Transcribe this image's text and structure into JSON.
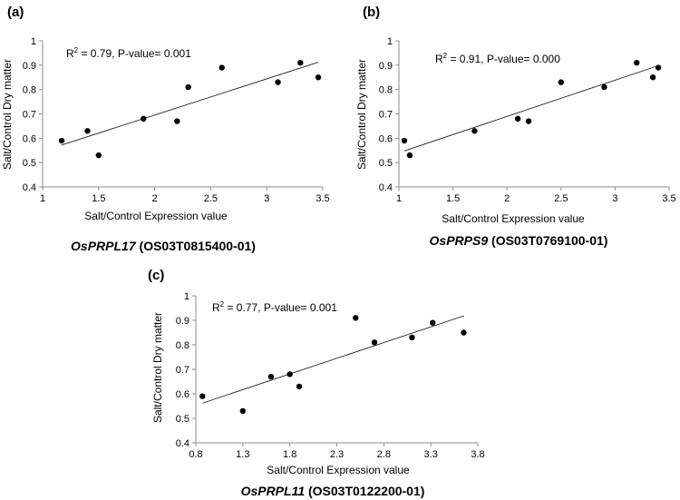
{
  "chart_data": [
    {
      "type": "scatter",
      "panel_label": "(a)",
      "annotation": {
        "r_prefix": "R",
        "r_sup": "2",
        "text": " = 0.79, P-value= 0.001"
      },
      "xlabel": "Salt/Control Expression value",
      "ylabel": "Salt/Control Dry matter",
      "xlim": [
        1,
        3.5
      ],
      "ylim": [
        0.4,
        1
      ],
      "xticks": [
        "1",
        "1.5",
        "2",
        "2.5",
        "3",
        "3.5"
      ],
      "yticks": [
        "0.4",
        "0.5",
        "0.6",
        "0.7",
        "0.8",
        "0.9",
        "1"
      ],
      "points": [
        {
          "x": 1.17,
          "y": 0.59
        },
        {
          "x": 1.4,
          "y": 0.63
        },
        {
          "x": 1.5,
          "y": 0.53
        },
        {
          "x": 1.9,
          "y": 0.68
        },
        {
          "x": 2.2,
          "y": 0.67
        },
        {
          "x": 2.3,
          "y": 0.81
        },
        {
          "x": 2.6,
          "y": 0.89
        },
        {
          "x": 3.1,
          "y": 0.83
        },
        {
          "x": 3.3,
          "y": 0.91
        },
        {
          "x": 3.46,
          "y": 0.85
        }
      ],
      "trendline": {
        "x1": 1.17,
        "y1": 0.572,
        "x2": 3.46,
        "y2": 0.912
      },
      "caption": {
        "gene": "OsPRPL17",
        "id": " (OS03T0815400-01)"
      }
    },
    {
      "type": "scatter",
      "panel_label": "(b)",
      "annotation": {
        "r_prefix": "R",
        "r_sup": "2",
        "text": " = 0.91, P-value= 0.000"
      },
      "xlabel": "Salt/Control Expression value",
      "ylabel": "Salt/Control Dry matter",
      "xlim": [
        1,
        3.5
      ],
      "ylim": [
        0.4,
        1
      ],
      "xticks": [
        "1",
        "1.5",
        "2",
        "2.5",
        "3",
        "3.5"
      ],
      "yticks": [
        "0.4",
        "0.5",
        "0.6",
        "0.7",
        "0.8",
        "0.9",
        "1"
      ],
      "points": [
        {
          "x": 1.05,
          "y": 0.59
        },
        {
          "x": 1.1,
          "y": 0.53
        },
        {
          "x": 1.7,
          "y": 0.63
        },
        {
          "x": 2.1,
          "y": 0.68
        },
        {
          "x": 2.2,
          "y": 0.67
        },
        {
          "x": 2.5,
          "y": 0.83
        },
        {
          "x": 2.9,
          "y": 0.81
        },
        {
          "x": 3.2,
          "y": 0.91
        },
        {
          "x": 3.35,
          "y": 0.85
        },
        {
          "x": 3.4,
          "y": 0.89
        }
      ],
      "trendline": {
        "x1": 1.05,
        "y1": 0.548,
        "x2": 3.4,
        "y2": 0.898
      },
      "caption": {
        "gene": "OsPRPS9",
        "id": " (OS03T0769100-01)"
      }
    },
    {
      "type": "scatter",
      "panel_label": "(c)",
      "annotation": {
        "r_prefix": "R",
        "r_sup": "2",
        "text": " = 0.77, P-value= 0.001"
      },
      "xlabel": "Salt/Control Expression value",
      "ylabel": "Salt/Control Dry matter",
      "xlim": [
        0.8,
        3.8
      ],
      "ylim": [
        0.4,
        1
      ],
      "xticks": [
        "0.8",
        "1.3",
        "1.8",
        "2.3",
        "2.8",
        "3.3",
        "3.8"
      ],
      "yticks": [
        "0.4",
        "0.5",
        "0.6",
        "0.7",
        "0.8",
        "0.9",
        "1"
      ],
      "points": [
        {
          "x": 0.87,
          "y": 0.59
        },
        {
          "x": 1.3,
          "y": 0.53
        },
        {
          "x": 1.6,
          "y": 0.67
        },
        {
          "x": 1.8,
          "y": 0.68
        },
        {
          "x": 1.9,
          "y": 0.63
        },
        {
          "x": 2.5,
          "y": 0.91
        },
        {
          "x": 2.7,
          "y": 0.81
        },
        {
          "x": 3.1,
          "y": 0.83
        },
        {
          "x": 3.32,
          "y": 0.89
        },
        {
          "x": 3.65,
          "y": 0.85
        }
      ],
      "trendline": {
        "x1": 0.87,
        "y1": 0.562,
        "x2": 3.65,
        "y2": 0.918
      },
      "caption": {
        "gene": "OsPRPL11",
        "id": " (OS03T0122200-01)"
      }
    }
  ]
}
